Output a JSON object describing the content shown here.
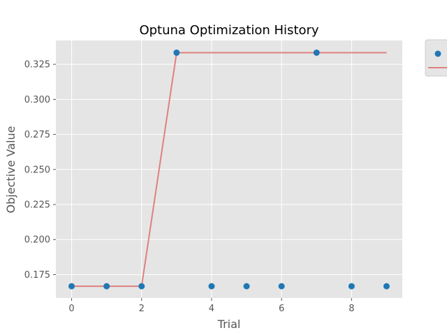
{
  "chart_data": {
    "type": "scatter",
    "title": "Optuna Optimization History",
    "xlabel": "Trial",
    "ylabel": "Objective Value",
    "xlim": [
      -0.45,
      9.45
    ],
    "ylim": [
      0.1583,
      0.342
    ],
    "xticks": [
      "0",
      "2",
      "4",
      "6",
      "8"
    ],
    "yticks": [
      "0.175",
      "0.200",
      "0.225",
      "0.250",
      "0.275",
      "0.300",
      "0.325"
    ],
    "grid": true,
    "legend_position": "outside top-right",
    "series": [
      {
        "kind": "scatter",
        "color": "#1f77b4",
        "x": [
          0,
          1,
          2,
          3,
          4,
          5,
          6,
          7,
          8,
          9
        ],
        "y": [
          0.1667,
          0.1667,
          0.1667,
          0.3333,
          0.1667,
          0.1667,
          0.1667,
          0.3333,
          0.1667,
          0.1667
        ]
      },
      {
        "kind": "line",
        "color": "#e08080",
        "x": [
          0,
          1,
          2,
          3,
          4,
          5,
          6,
          7,
          8,
          9
        ],
        "y": [
          0.1667,
          0.1667,
          0.1667,
          0.3333,
          0.3333,
          0.3333,
          0.3333,
          0.3333,
          0.3333,
          0.3333
        ]
      }
    ]
  }
}
